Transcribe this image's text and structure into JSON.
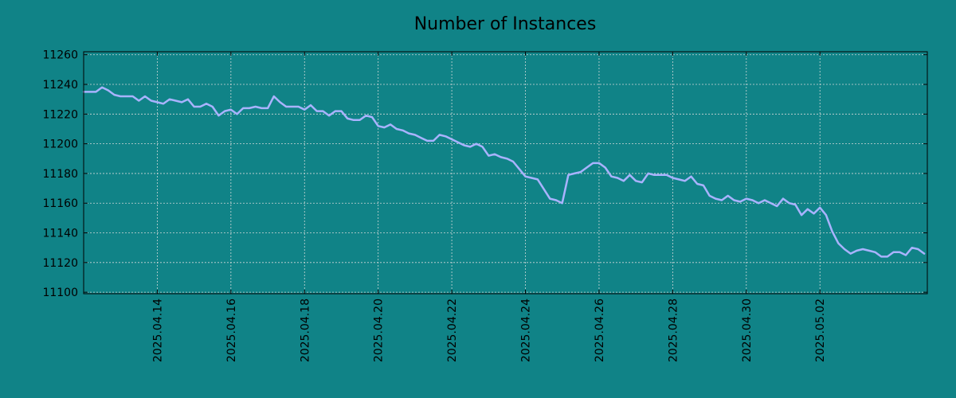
{
  "colors": {
    "background": "#108387",
    "line": "#a9b3ff",
    "grid": "#cfd8d8",
    "axis": "#000000"
  },
  "chart_data": {
    "type": "line",
    "title": "Number of Instances",
    "xlabel": "",
    "ylabel": "",
    "grid": true,
    "legend": "none",
    "xlim": [
      "2025-04-12",
      "2025-05-04"
    ],
    "ylim": [
      11099,
      11262
    ],
    "x_tick_labels": [
      "2025.04.14",
      "2025.04.16",
      "2025.04.18",
      "2025.04.20",
      "2025.04.22",
      "2025.04.24",
      "2025.04.26",
      "2025.04.28",
      "2025.04.30",
      "2025.05.02"
    ],
    "y_tick_labels": [
      "11100",
      "11120",
      "11140",
      "11160",
      "11180",
      "11200",
      "11220",
      "11240",
      "11260"
    ],
    "series": [
      {
        "name": "",
        "points": [
          [
            "2025-04-12 00:00",
            11235
          ],
          [
            "2025-04-12 08:00",
            11235
          ],
          [
            "2025-04-12 12:00",
            11238
          ],
          [
            "2025-04-12 16:00",
            11236
          ],
          [
            "2025-04-12 20:00",
            11233
          ],
          [
            "2025-04-13 00:00",
            11232
          ],
          [
            "2025-04-13 08:00",
            11232
          ],
          [
            "2025-04-13 12:00",
            11229
          ],
          [
            "2025-04-13 16:00",
            11232
          ],
          [
            "2025-04-13 20:00",
            11229
          ],
          [
            "2025-04-14 00:00",
            11228
          ],
          [
            "2025-04-14 04:00",
            11227
          ],
          [
            "2025-04-14 08:00",
            11230
          ],
          [
            "2025-04-14 12:00",
            11229
          ],
          [
            "2025-04-14 16:00",
            11228
          ],
          [
            "2025-04-14 20:00",
            11230
          ],
          [
            "2025-04-15 00:00",
            11225
          ],
          [
            "2025-04-15 04:00",
            11225
          ],
          [
            "2025-04-15 08:00",
            11227
          ],
          [
            "2025-04-15 12:00",
            11225
          ],
          [
            "2025-04-15 16:00",
            11219
          ],
          [
            "2025-04-15 20:00",
            11222
          ],
          [
            "2025-04-16 00:00",
            11223
          ],
          [
            "2025-04-16 04:00",
            11220
          ],
          [
            "2025-04-16 08:00",
            11224
          ],
          [
            "2025-04-16 12:00",
            11224
          ],
          [
            "2025-04-16 16:00",
            11225
          ],
          [
            "2025-04-16 20:00",
            11224
          ],
          [
            "2025-04-17 00:00",
            11224
          ],
          [
            "2025-04-17 04:00",
            11232
          ],
          [
            "2025-04-17 08:00",
            11228
          ],
          [
            "2025-04-17 12:00",
            11225
          ],
          [
            "2025-04-17 20:00",
            11225
          ],
          [
            "2025-04-18 00:00",
            11223
          ],
          [
            "2025-04-18 04:00",
            11226
          ],
          [
            "2025-04-18 08:00",
            11222
          ],
          [
            "2025-04-18 12:00",
            11222
          ],
          [
            "2025-04-18 16:00",
            11219
          ],
          [
            "2025-04-18 20:00",
            11222
          ],
          [
            "2025-04-19 00:00",
            11222
          ],
          [
            "2025-04-19 04:00",
            11217
          ],
          [
            "2025-04-19 08:00",
            11216
          ],
          [
            "2025-04-19 12:00",
            11216
          ],
          [
            "2025-04-19 16:00",
            11219
          ],
          [
            "2025-04-19 20:00",
            11218
          ],
          [
            "2025-04-20 00:00",
            11212
          ],
          [
            "2025-04-20 04:00",
            11211
          ],
          [
            "2025-04-20 08:00",
            11213
          ],
          [
            "2025-04-20 12:00",
            11210
          ],
          [
            "2025-04-20 16:00",
            11209
          ],
          [
            "2025-04-20 20:00",
            11207
          ],
          [
            "2025-04-21 00:00",
            11206
          ],
          [
            "2025-04-21 04:00",
            11204
          ],
          [
            "2025-04-21 08:00",
            11202
          ],
          [
            "2025-04-21 12:00",
            11202
          ],
          [
            "2025-04-21 16:00",
            11206
          ],
          [
            "2025-04-21 20:00",
            11205
          ],
          [
            "2025-04-22 00:00",
            11203
          ],
          [
            "2025-04-22 04:00",
            11201
          ],
          [
            "2025-04-22 08:00",
            11199
          ],
          [
            "2025-04-22 12:00",
            11198
          ],
          [
            "2025-04-22 16:00",
            11200
          ],
          [
            "2025-04-22 20:00",
            11198
          ],
          [
            "2025-04-23 00:00",
            11192
          ],
          [
            "2025-04-23 04:00",
            11193
          ],
          [
            "2025-04-23 08:00",
            11191
          ],
          [
            "2025-04-23 12:00",
            11190
          ],
          [
            "2025-04-23 16:00",
            11188
          ],
          [
            "2025-04-23 20:00",
            11183
          ],
          [
            "2025-04-24 00:00",
            11178
          ],
          [
            "2025-04-24 04:00",
            11177
          ],
          [
            "2025-04-24 08:00",
            11176
          ],
          [
            "2025-04-24 16:00",
            11163
          ],
          [
            "2025-04-24 20:00",
            11162
          ],
          [
            "2025-04-25 00:00",
            11160
          ],
          [
            "2025-04-25 04:00",
            11179
          ],
          [
            "2025-04-25 08:00",
            11180
          ],
          [
            "2025-04-25 12:00",
            11181
          ],
          [
            "2025-04-25 16:00",
            11184
          ],
          [
            "2025-04-25 20:00",
            11187
          ],
          [
            "2025-04-26 00:00",
            11187
          ],
          [
            "2025-04-26 04:00",
            11184
          ],
          [
            "2025-04-26 08:00",
            11178
          ],
          [
            "2025-04-26 12:00",
            11177
          ],
          [
            "2025-04-26 16:00",
            11175
          ],
          [
            "2025-04-26 20:00",
            11179
          ],
          [
            "2025-04-27 00:00",
            11175
          ],
          [
            "2025-04-27 04:00",
            11174
          ],
          [
            "2025-04-27 08:00",
            11180
          ],
          [
            "2025-04-27 12:00",
            11179
          ],
          [
            "2025-04-27 20:00",
            11179
          ],
          [
            "2025-04-28 00:00",
            11177
          ],
          [
            "2025-04-28 04:00",
            11176
          ],
          [
            "2025-04-28 08:00",
            11175
          ],
          [
            "2025-04-28 12:00",
            11178
          ],
          [
            "2025-04-28 16:00",
            11173
          ],
          [
            "2025-04-28 20:00",
            11172
          ],
          [
            "2025-04-29 00:00",
            11165
          ],
          [
            "2025-04-29 04:00",
            11163
          ],
          [
            "2025-04-29 08:00",
            11162
          ],
          [
            "2025-04-29 12:00",
            11165
          ],
          [
            "2025-04-29 16:00",
            11162
          ],
          [
            "2025-04-29 20:00",
            11161
          ],
          [
            "2025-04-30 00:00",
            11163
          ],
          [
            "2025-04-30 04:00",
            11162
          ],
          [
            "2025-04-30 08:00",
            11160
          ],
          [
            "2025-04-30 12:00",
            11162
          ],
          [
            "2025-04-30 16:00",
            11160
          ],
          [
            "2025-04-30 20:00",
            11158
          ],
          [
            "2025-05-01 00:00",
            11163
          ],
          [
            "2025-05-01 04:00",
            11160
          ],
          [
            "2025-05-01 08:00",
            11159
          ],
          [
            "2025-05-01 12:00",
            11152
          ],
          [
            "2025-05-01 16:00",
            11156
          ],
          [
            "2025-05-01 20:00",
            11153
          ],
          [
            "2025-05-02 00:00",
            11157
          ],
          [
            "2025-05-02 04:00",
            11152
          ],
          [
            "2025-05-02 08:00",
            11141
          ],
          [
            "2025-05-02 12:00",
            11133
          ],
          [
            "2025-05-02 16:00",
            11129
          ],
          [
            "2025-05-02 20:00",
            11126
          ],
          [
            "2025-05-03 00:00",
            11128
          ],
          [
            "2025-05-03 04:00",
            11129
          ],
          [
            "2025-05-03 08:00",
            11128
          ],
          [
            "2025-05-03 12:00",
            11127
          ],
          [
            "2025-05-03 16:00",
            11124
          ],
          [
            "2025-05-03 20:00",
            11124
          ],
          [
            "2025-05-04 00:00",
            11127
          ],
          [
            "2025-05-04 04:00",
            11127
          ],
          [
            "2025-05-04 08:00",
            11125
          ],
          [
            "2025-05-04 12:00",
            11130
          ],
          [
            "2025-05-04 16:00",
            11129
          ],
          [
            "2025-05-04 20:00",
            11126
          ]
        ]
      }
    ]
  }
}
